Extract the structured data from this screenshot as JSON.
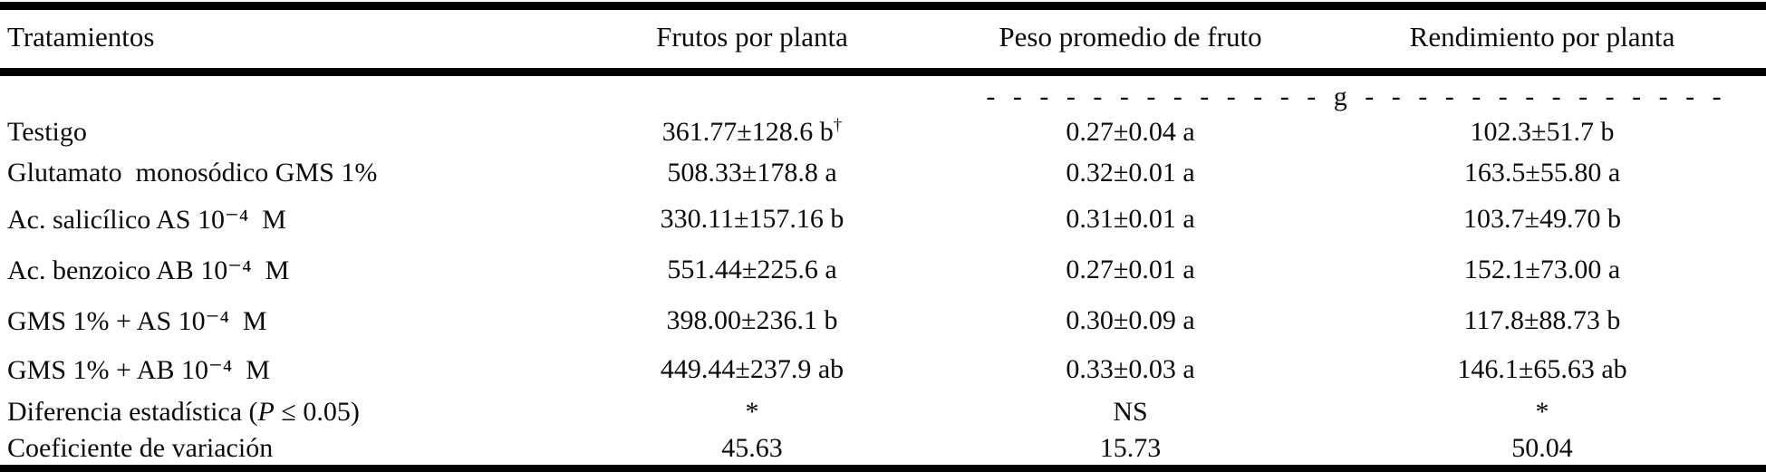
{
  "table": {
    "headers": {
      "treatments": "Tratamientos",
      "fruits_per_plant": "Frutos por planta",
      "avg_fruit_weight": "Peso promedio de fruto",
      "yield_per_plant": "Rendimiento por planta"
    },
    "units_line": "- - - - - - - - - - - - - g - - - - - - - - - - - - - -",
    "unit": "g",
    "rows": [
      {
        "treatment": "Testigo",
        "frutos": "361.77±128.6 b",
        "frutos_footnote": "†",
        "peso": "0.27±0.04 a",
        "rendimiento": "102.3±51.7 b"
      },
      {
        "treatment": "Glutamato  monosódico GMS 1%",
        "frutos": "508.33±178.8 a",
        "peso": "0.32±0.01 a",
        "rendimiento": "163.5±55.80 a"
      },
      {
        "treatment": "Ac. salicílico AS 10⁻⁴  M",
        "frutos": "330.11±157.16 b",
        "peso": "0.31±0.01 a",
        "rendimiento": "103.7±49.70 b"
      },
      {
        "treatment": "Ac. benzoico AB 10⁻⁴  M",
        "frutos": "551.44±225.6 a",
        "peso": "0.27±0.01 a",
        "rendimiento": "152.1±73.00 a"
      },
      {
        "treatment": "GMS 1% + AS 10⁻⁴  M",
        "frutos": "398.00±236.1 b",
        "peso": "0.30±0.09 a",
        "rendimiento": "117.8±88.73 b"
      },
      {
        "treatment": "GMS 1% + AB 10⁻⁴  M",
        "frutos": "449.44±237.9 ab",
        "peso": "0.33±0.03 a",
        "rendimiento": "146.1±65.63 ab"
      },
      {
        "treatment_pre": "Diferencia estadística (",
        "treatment_italic": "P",
        "treatment_post": " ≤ 0.05)",
        "frutos": "*",
        "peso": "NS",
        "rendimiento": "*"
      },
      {
        "treatment": "Coeficiente de variación",
        "frutos": "45.63",
        "peso": "15.73",
        "rendimiento": "50.04"
      }
    ]
  }
}
